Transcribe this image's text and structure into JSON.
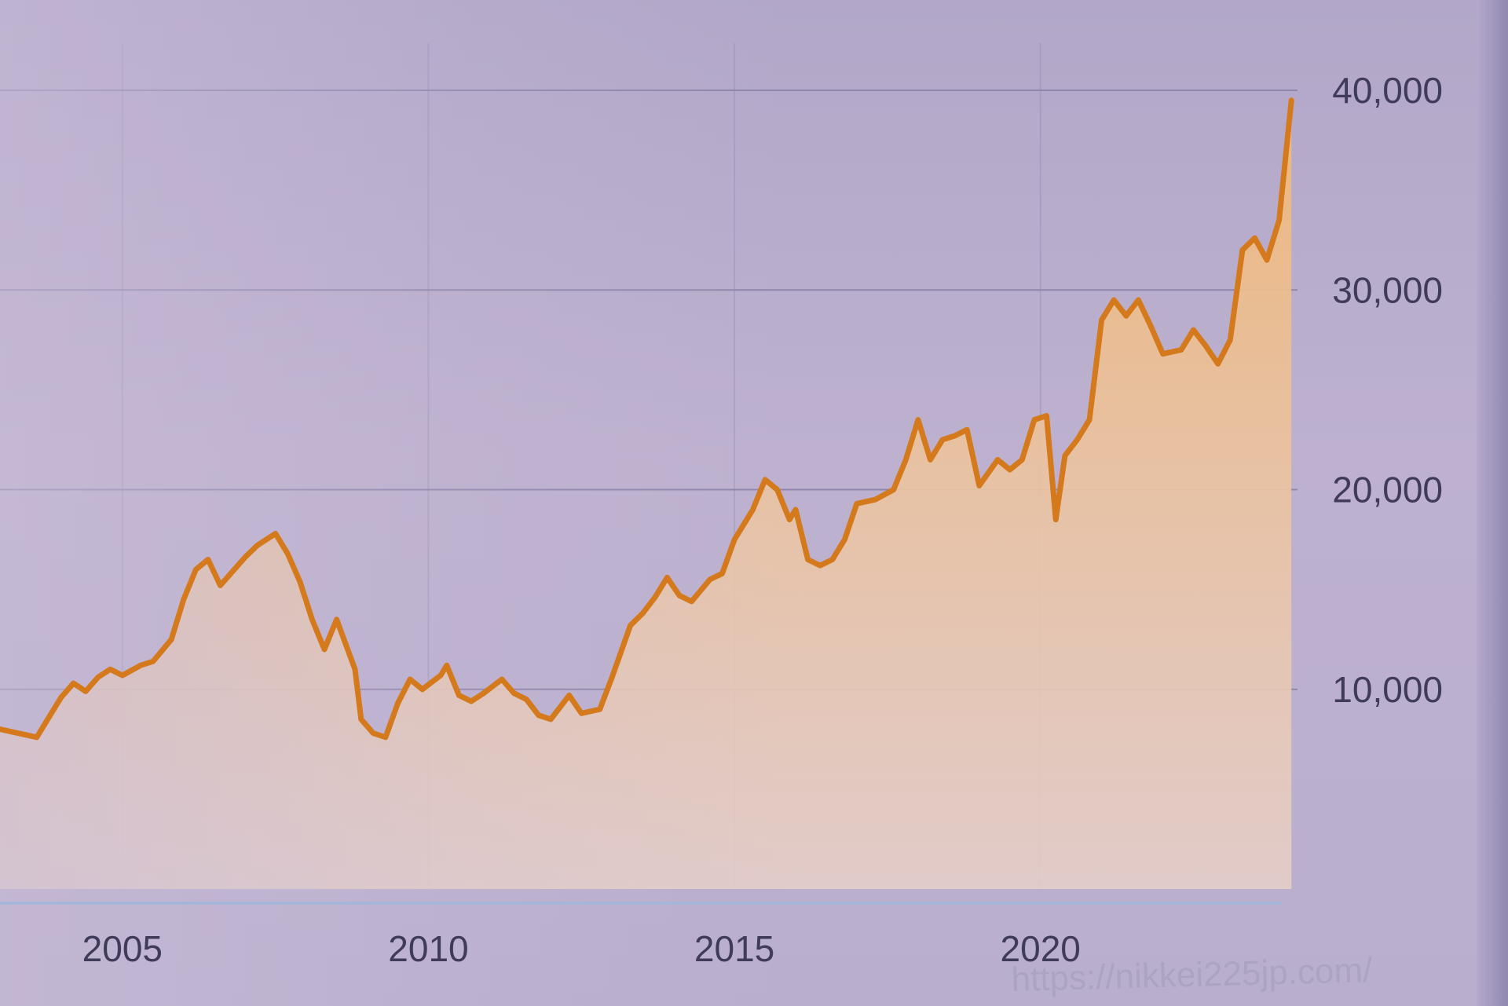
{
  "watermark_url": "https://nikkei225jp.com/",
  "colors": {
    "line": "#d47a1c",
    "area_top": "#efb87a",
    "area_bottom": "#e8d0c8",
    "grid": "#8f86ac",
    "text": "#3f3b58"
  },
  "chart_data": {
    "type": "area",
    "title": "",
    "xlabel": "",
    "ylabel": "",
    "xlim": [
      2003.0,
      2024.2
    ],
    "ylim": [
      0,
      40000
    ],
    "y_axis_side": "right",
    "grid": true,
    "x_ticks": [
      {
        "value": 2005,
        "label": "2005"
      },
      {
        "value": 2010,
        "label": "2010"
      },
      {
        "value": 2015,
        "label": "2015"
      },
      {
        "value": 2020,
        "label": "2020"
      }
    ],
    "y_ticks": [
      {
        "value": 10000,
        "label": "10,000"
      },
      {
        "value": 20000,
        "label": "20,000"
      },
      {
        "value": 30000,
        "label": "30,000"
      },
      {
        "value": 40000,
        "label": "40,000"
      }
    ],
    "series": [
      {
        "values": [
          [
            2003.0,
            8000
          ],
          [
            2003.3,
            7800
          ],
          [
            2003.6,
            7600
          ],
          [
            2003.8,
            8600
          ],
          [
            2004.0,
            9600
          ],
          [
            2004.2,
            10300
          ],
          [
            2004.4,
            9900
          ],
          [
            2004.6,
            10600
          ],
          [
            2004.8,
            11000
          ],
          [
            2005.0,
            10700
          ],
          [
            2005.3,
            11200
          ],
          [
            2005.5,
            11400
          ],
          [
            2005.8,
            12500
          ],
          [
            2006.0,
            14500
          ],
          [
            2006.2,
            16000
          ],
          [
            2006.4,
            16500
          ],
          [
            2006.6,
            15200
          ],
          [
            2006.8,
            15900
          ],
          [
            2007.0,
            16600
          ],
          [
            2007.2,
            17200
          ],
          [
            2007.5,
            17800
          ],
          [
            2007.7,
            16800
          ],
          [
            2007.9,
            15400
          ],
          [
            2008.1,
            13500
          ],
          [
            2008.3,
            12000
          ],
          [
            2008.5,
            13500
          ],
          [
            2008.8,
            11000
          ],
          [
            2008.9,
            8500
          ],
          [
            2009.1,
            7800
          ],
          [
            2009.3,
            7600
          ],
          [
            2009.5,
            9300
          ],
          [
            2009.7,
            10500
          ],
          [
            2009.9,
            10000
          ],
          [
            2010.2,
            10700
          ],
          [
            2010.3,
            11200
          ],
          [
            2010.5,
            9700
          ],
          [
            2010.7,
            9400
          ],
          [
            2010.9,
            9800
          ],
          [
            2011.2,
            10500
          ],
          [
            2011.4,
            9800
          ],
          [
            2011.6,
            9500
          ],
          [
            2011.8,
            8700
          ],
          [
            2012.0,
            8500
          ],
          [
            2012.3,
            9700
          ],
          [
            2012.5,
            8800
          ],
          [
            2012.8,
            9000
          ],
          [
            2013.0,
            10600
          ],
          [
            2013.3,
            13200
          ],
          [
            2013.5,
            13800
          ],
          [
            2013.7,
            14600
          ],
          [
            2013.9,
            15600
          ],
          [
            2014.1,
            14700
          ],
          [
            2014.3,
            14400
          ],
          [
            2014.6,
            15500
          ],
          [
            2014.8,
            15800
          ],
          [
            2015.0,
            17500
          ],
          [
            2015.3,
            19000
          ],
          [
            2015.5,
            20500
          ],
          [
            2015.7,
            20000
          ],
          [
            2015.9,
            18500
          ],
          [
            2016.0,
            19000
          ],
          [
            2016.2,
            16500
          ],
          [
            2016.4,
            16200
          ],
          [
            2016.6,
            16500
          ],
          [
            2016.8,
            17500
          ],
          [
            2017.0,
            19300
          ],
          [
            2017.3,
            19500
          ],
          [
            2017.6,
            20000
          ],
          [
            2017.8,
            21500
          ],
          [
            2018.0,
            23500
          ],
          [
            2018.2,
            21500
          ],
          [
            2018.4,
            22500
          ],
          [
            2018.6,
            22700
          ],
          [
            2018.8,
            23000
          ],
          [
            2019.0,
            20200
          ],
          [
            2019.3,
            21500
          ],
          [
            2019.5,
            21000
          ],
          [
            2019.7,
            21500
          ],
          [
            2019.9,
            23500
          ],
          [
            2020.1,
            23700
          ],
          [
            2020.25,
            18500
          ],
          [
            2020.4,
            21700
          ],
          [
            2020.6,
            22500
          ],
          [
            2020.8,
            23500
          ],
          [
            2021.0,
            28500
          ],
          [
            2021.2,
            29500
          ],
          [
            2021.4,
            28700
          ],
          [
            2021.6,
            29500
          ],
          [
            2021.8,
            28200
          ],
          [
            2022.0,
            26800
          ],
          [
            2022.3,
            27000
          ],
          [
            2022.5,
            28000
          ],
          [
            2022.7,
            27200
          ],
          [
            2022.9,
            26300
          ],
          [
            2023.1,
            27500
          ],
          [
            2023.3,
            32000
          ],
          [
            2023.5,
            32600
          ],
          [
            2023.7,
            31500
          ],
          [
            2023.9,
            33500
          ],
          [
            2024.1,
            39500
          ]
        ]
      }
    ]
  }
}
